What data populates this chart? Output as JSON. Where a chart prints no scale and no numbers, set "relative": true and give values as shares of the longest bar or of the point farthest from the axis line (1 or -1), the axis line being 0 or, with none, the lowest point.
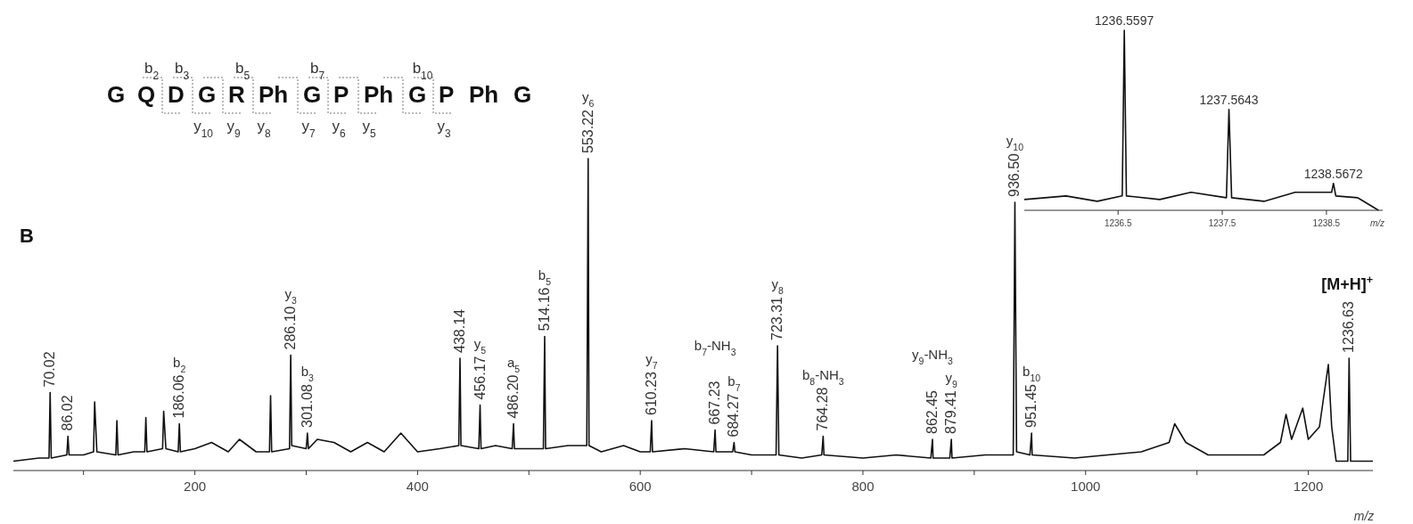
{
  "chart_data": [
    {
      "type": "line",
      "xlabel": "m/z",
      "relative": true,
      "xlim": [
        37,
        1258
      ],
      "xticks": [
        {
          "value": 100,
          "label": null
        },
        200,
        {
          "value": 300,
          "label": null
        },
        400,
        {
          "value": 500,
          "label": null
        },
        600,
        {
          "value": 700,
          "label": null
        },
        800,
        {
          "value": 900,
          "label": null
        },
        1000,
        {
          "value": 1100,
          "label": null
        },
        1200
      ],
      "series": [
        {
          "color": "#111111",
          "x": [
            37,
            60,
            69,
            70.02,
            71,
            85,
            86.02,
            87,
            100,
            109,
            110,
            112,
            129,
            130,
            131,
            145,
            155,
            156,
            157,
            171,
            172,
            174,
            185,
            186.06,
            187,
            200,
            215,
            230,
            240,
            255,
            267,
            268,
            269,
            285,
            286.1,
            287,
            300,
            301.08,
            302,
            310,
            325,
            340,
            355,
            370,
            385,
            400,
            420,
            437,
            438.14,
            439,
            455,
            456.17,
            457,
            470,
            485,
            486.2,
            487,
            500,
            513,
            514.16,
            515,
            535,
            552,
            553.22,
            554,
            565,
            585,
            600,
            609,
            610.23,
            611,
            640,
            666,
            667.23,
            668,
            683,
            684.27,
            685,
            700,
            722,
            723.31,
            724.5,
            745,
            763,
            764.28,
            765,
            800,
            830,
            861,
            862.45,
            863,
            878,
            879.41,
            880,
            910,
            935,
            936.5,
            938,
            950,
            951.45,
            952,
            990,
            1050,
            1075,
            1080,
            1090,
            1110,
            1160,
            1175,
            1180,
            1185,
            1195,
            1200,
            1210,
            1218,
            1221,
            1225,
            1235.5,
            1236.63,
            1238,
            1258
          ],
          "values": [
            0.03,
            0.04,
            0.04,
            0.25,
            0.04,
            0.05,
            0.11,
            0.05,
            0.05,
            0.06,
            0.22,
            0.06,
            0.05,
            0.16,
            0.05,
            0.06,
            0.06,
            0.17,
            0.06,
            0.07,
            0.19,
            0.07,
            0.06,
            0.15,
            0.06,
            0.07,
            0.09,
            0.06,
            0.1,
            0.06,
            0.06,
            0.24,
            0.06,
            0.07,
            0.37,
            0.08,
            0.07,
            0.12,
            0.07,
            0.1,
            0.09,
            0.06,
            0.09,
            0.06,
            0.12,
            0.06,
            0.07,
            0.08,
            0.36,
            0.08,
            0.07,
            0.21,
            0.07,
            0.08,
            0.07,
            0.15,
            0.07,
            0.07,
            0.07,
            0.43,
            0.07,
            0.08,
            0.08,
            1,
            0.08,
            0.06,
            0.08,
            0.06,
            0.06,
            0.16,
            0.06,
            0.07,
            0.06,
            0.13,
            0.06,
            0.06,
            0.09,
            0.06,
            0.05,
            0.05,
            0.4,
            0.05,
            0.04,
            0.05,
            0.11,
            0.05,
            0.04,
            0.05,
            0.04,
            0.1,
            0.04,
            0.04,
            0.1,
            0.04,
            0.05,
            0.05,
            0.86,
            0.06,
            0.05,
            0.12,
            0.05,
            0.04,
            0.06,
            0.09,
            0.15,
            0.09,
            0.05,
            0.05,
            0.09,
            0.18,
            0.1,
            0.2,
            0.1,
            0.14,
            0.34,
            0.14,
            0.03,
            0.03,
            0.36,
            0.03,
            0.03
          ]
        }
      ],
      "annotations": [
        "B",
        "[M+H]$^{+}$",
        "G Q D G R Ph G P Ph G P Ph G",
        "b$_{2}$",
        "b$_{3}$",
        "b$_{5}$",
        "b$_{7}$",
        "b$_{10}$",
        "y$_{10}$",
        "y$_{9}$",
        "y$_{8}$",
        "y$_{7}$",
        "y$_{6}$",
        "y$_{5}$",
        "y$_{3}$",
        {
          "text": "70.02",
          "x": 70.02,
          "y": 0.25
        },
        {
          "text": "86.02",
          "x": 86.02,
          "y": 0.11
        },
        {
          "text": "186.06",
          "x": 186.06,
          "y": 0.15
        },
        {
          "text": "286.10",
          "x": 286.1,
          "y": 0.37
        },
        {
          "text": "301.08",
          "x": 301.08,
          "y": 0.12
        },
        {
          "text": "438.14",
          "x": 438.14,
          "y": 0.36
        },
        {
          "text": "456.17",
          "x": 456.17,
          "y": 0.21
        },
        {
          "text": "486.20",
          "x": 486.2,
          "y": 0.15
        },
        {
          "text": "514.16",
          "x": 514.16,
          "y": 0.43
        },
        {
          "text": "553.22",
          "x": 553.22,
          "y": 1
        },
        {
          "text": "610.23",
          "x": 610.23,
          "y": 0.16
        },
        {
          "text": "667.23",
          "x": 667.23,
          "y": 0.13
        },
        {
          "text": "684.27",
          "x": 684.27,
          "y": 0.09
        },
        {
          "text": "723.31",
          "x": 723.31,
          "y": 0.4
        },
        {
          "text": "764.28",
          "x": 764.28,
          "y": 0.11
        },
        {
          "text": "862.45",
          "x": 862.45,
          "y": 0.1
        },
        {
          "text": "879.41",
          "x": 879.41,
          "y": 0.1
        },
        {
          "text": "936.50",
          "x": 936.5,
          "y": 0.86
        },
        {
          "text": "951.45",
          "x": 951.45,
          "y": 0.12
        },
        {
          "text": "1236.63",
          "x": 1236.63,
          "y": 0.36
        },
        "b$_{2}$",
        "y$_{3}$",
        "b$_{3}$",
        "y$_{5}$",
        "a$_{5}$",
        "b$_{5}$",
        "y$_{6}$",
        "y$_{7}$",
        "b$_{7}$-NH$_{3}$",
        "b$_{7}$",
        "y$_{8}$",
        "b$_{8}$-NH$_{3}$",
        "y$_{9}$-NH$_{3}$",
        "y$_{9}$",
        "y$_{10}$",
        "b$_{10}$"
      ]
    },
    {
      "type": "line",
      "xlabel": "m/z",
      "relative": true,
      "xlim": [
        1235.6,
        1239.04
      ],
      "xticks": [
        1236.5,
        1237.5,
        1238.5
      ],
      "series": [
        {
          "color": "#111111",
          "x": [
            1235.6,
            1236.0,
            1236.3,
            1236.54,
            1236.5597,
            1236.58,
            1236.9,
            1237.2,
            1237.54,
            1237.5643,
            1237.59,
            1237.9,
            1238.2,
            1238.55,
            1238.5672,
            1238.59,
            1238.8,
            1239.0
          ],
          "values": [
            0.06,
            0.08,
            0.05,
            0.08,
            1,
            0.08,
            0.06,
            0.1,
            0.07,
            0.56,
            0.07,
            0.05,
            0.1,
            0.1,
            0.15,
            0.08,
            0.07,
            0
          ]
        }
      ],
      "annotations": [
        {
          "text": "1236.5597",
          "x": 1236.5597,
          "y": 1
        },
        {
          "text": "1237.5643",
          "x": 1237.5643,
          "y": 0.56
        },
        {
          "text": "1238.5672",
          "x": 1238.5672,
          "y": 0.15
        }
      ]
    }
  ]
}
